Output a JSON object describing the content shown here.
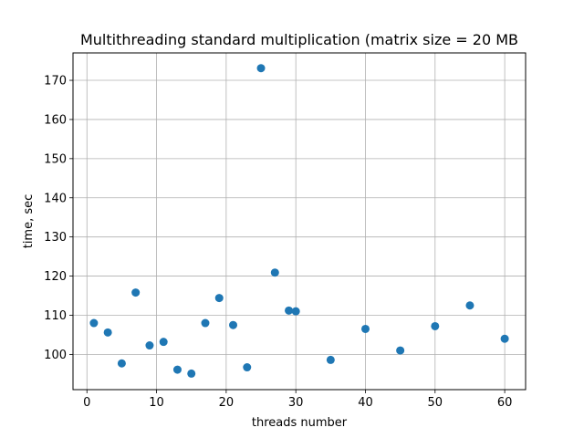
{
  "chart_data": {
    "type": "scatter",
    "title": "Multithreading standard multiplication (matrix size = 20 MB",
    "xlabel": "threads number",
    "ylabel": "time, sec",
    "xlim": [
      -2,
      63
    ],
    "ylim": [
      91,
      177
    ],
    "xticks": [
      0,
      10,
      20,
      30,
      40,
      50,
      60
    ],
    "yticks": [
      100,
      110,
      120,
      130,
      140,
      150,
      160,
      170
    ],
    "grid": true,
    "marker_color": "#1f77b4",
    "series": [
      {
        "points": [
          [
            1,
            108.0
          ],
          [
            3,
            105.6
          ],
          [
            5,
            97.7
          ],
          [
            7,
            115.8
          ],
          [
            9,
            102.3
          ],
          [
            11,
            103.2
          ],
          [
            13,
            96.1
          ],
          [
            15,
            95.1
          ],
          [
            17,
            108.0
          ],
          [
            19,
            114.4
          ],
          [
            21,
            107.5
          ],
          [
            23,
            96.7
          ],
          [
            25,
            173.1
          ],
          [
            27,
            120.9
          ],
          [
            29,
            111.2
          ],
          [
            30,
            111.0
          ],
          [
            35,
            98.6
          ],
          [
            40,
            106.5
          ],
          [
            45,
            101.0
          ],
          [
            50,
            107.2
          ],
          [
            55,
            112.5
          ],
          [
            60,
            104.0
          ]
        ]
      }
    ]
  }
}
